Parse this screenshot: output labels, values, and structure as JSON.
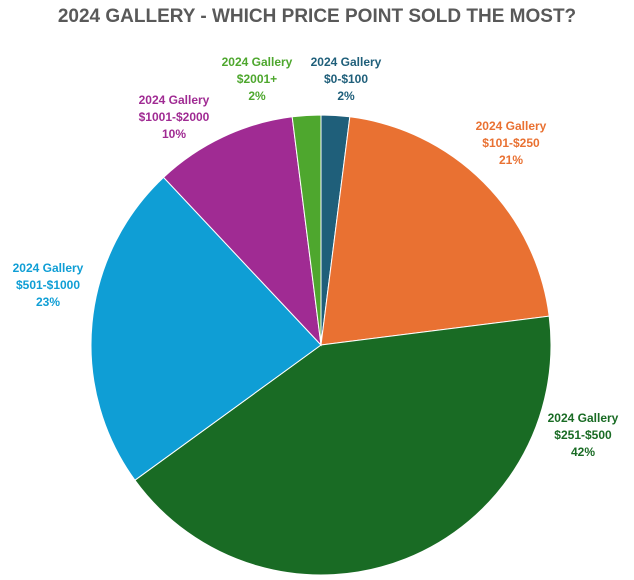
{
  "chart_data": {
    "type": "pie",
    "title": "2024 GALLERY - WHICH PRICE POINT SOLD THE MOST?",
    "start_angle": "12 o'clock, clockwise",
    "slices": [
      {
        "series": "2024 Gallery",
        "category": "$0-$100",
        "value": 2,
        "label": "2%",
        "color": "#1F5F7A"
      },
      {
        "series": "2024 Gallery",
        "category": "$101-$250",
        "value": 21,
        "label": "21%",
        "color": "#E97132"
      },
      {
        "series": "2024 Gallery",
        "category": "$251-$500",
        "value": 42,
        "label": "42%",
        "color": "#196B24"
      },
      {
        "series": "2024 Gallery",
        "category": "$501-$1000",
        "value": 23,
        "label": "23%",
        "color": "#0F9ED5"
      },
      {
        "series": "2024 Gallery",
        "category": "$1001-$2000",
        "value": 10,
        "label": "10%",
        "color": "#A02B93"
      },
      {
        "series": "2024 Gallery",
        "category": "$2001+",
        "value": 2,
        "label": "2%",
        "color": "#4EA72E"
      }
    ]
  }
}
